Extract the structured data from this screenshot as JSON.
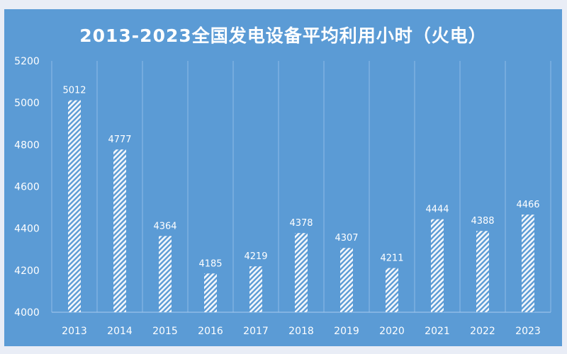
{
  "chart_data": {
    "type": "bar",
    "title": "2013-2023全国发电设备平均利用小时（火电）",
    "categories": [
      "2013",
      "2014",
      "2015",
      "2016",
      "2017",
      "2018",
      "2019",
      "2020",
      "2021",
      "2022",
      "2023"
    ],
    "values": [
      5012,
      4777,
      4364,
      4185,
      4219,
      4378,
      4307,
      4211,
      4444,
      4388,
      4466
    ],
    "ylim": [
      4000,
      5200
    ],
    "yticks": [
      "4000",
      "4200",
      "4400",
      "4600",
      "4800",
      "5000",
      "5200"
    ],
    "xlabel": "",
    "ylabel": "",
    "grid": "vertical",
    "bar_fill": "diagonal-hatch white",
    "colors": {
      "background": "#5b9bd5",
      "bar": "#ffffff",
      "text": "#ffffff"
    }
  }
}
